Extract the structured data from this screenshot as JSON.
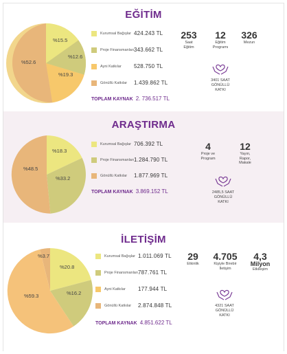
{
  "colors": {
    "title": "#6e2a8c",
    "yellow": "#ece680",
    "olive": "#cfcb7c",
    "orange": "#f7c86b",
    "tan": "#e8b67a",
    "peach": "#f5c27a",
    "bg_alt": "#f6eff3"
  },
  "egitim": {
    "title": "EĞİTİM",
    "pie_labels": [
      "%15.5",
      "%12.6",
      "%19.3",
      "%52.6"
    ],
    "legend": [
      {
        "name": "Kurumsal Bağışlar",
        "value": "424.243 TL"
      },
      {
        "name": "Proje Finansmanları",
        "value": "343.662 TL"
      },
      {
        "name": "Ayni Katkılar",
        "value": "528.750 TL"
      },
      {
        "name": "Gönüllü Katkılar",
        "value": "1.439.862 TL"
      }
    ],
    "total_label": "TOPLAM KAYNAK",
    "total_value": "2. 736.517 TL",
    "stats": [
      {
        "num": "253",
        "label1": "Saat",
        "label2": "Eğitim"
      },
      {
        "num": "12",
        "label1": "Eğitim",
        "label2": "Programı"
      },
      {
        "num": "326",
        "label1": "Mezun",
        "label2": ""
      }
    ],
    "volunteer": [
      "3401 SAAT",
      "GÖNÜLLÜ",
      "KATKI"
    ]
  },
  "arastirma": {
    "title": "ARAŞTIRMA",
    "pie_labels": [
      "%18.3",
      "%33.2",
      "%48.5"
    ],
    "legend": [
      {
        "name": "Kurumsal Bağışlar",
        "value": "706.392 TL"
      },
      {
        "name": "Proje Finansmanları",
        "value": "1.284.790 TL"
      },
      {
        "name": "Gönüllü Katkılar",
        "value": "1.877.969 TL"
      }
    ],
    "total_label": "TOPLAM KAYNAK",
    "total_value": "3.869.152 TL",
    "stats": [
      {
        "num": "4",
        "label1": "Proje ve",
        "label2": "Program"
      },
      {
        "num": "12",
        "label1": "Yayın,",
        "label2": "Rapor,",
        "label3": "Makale"
      }
    ],
    "volunteer": [
      "2485,5 SAAT",
      "GÖNÜLLÜ",
      "KATKI"
    ]
  },
  "iletisim": {
    "title": "İLETİŞİM",
    "pie_labels": [
      "%3.7",
      "%20.8",
      "%16.2",
      "%59.3"
    ],
    "legend": [
      {
        "name": "Kurumsal Bağışlar",
        "value": "1.011.069 TL"
      },
      {
        "name": "Proje Finansmanları",
        "value": "787.761 TL"
      },
      {
        "name": "Ayni Katkılar",
        "value": "177.944 TL"
      },
      {
        "name": "Gönüllü Katkılar",
        "value": "2.874.848 TL"
      }
    ],
    "total_label": "TOPLAM KAYNAK",
    "total_value": "4.851.622 TL",
    "stats": [
      {
        "num": "29",
        "label1": "Etkinlik",
        "label2": ""
      },
      {
        "num": "4.705",
        "label1": "Kişiyle Birebir",
        "label2": "İletişim"
      },
      {
        "num": "4,3",
        "num2": "Milyon",
        "label1": "Etkileşim",
        "label2": ""
      }
    ],
    "volunteer": [
      "4321 SAAT",
      "GÖNÜLLÜ",
      "KATKI"
    ]
  }
}
